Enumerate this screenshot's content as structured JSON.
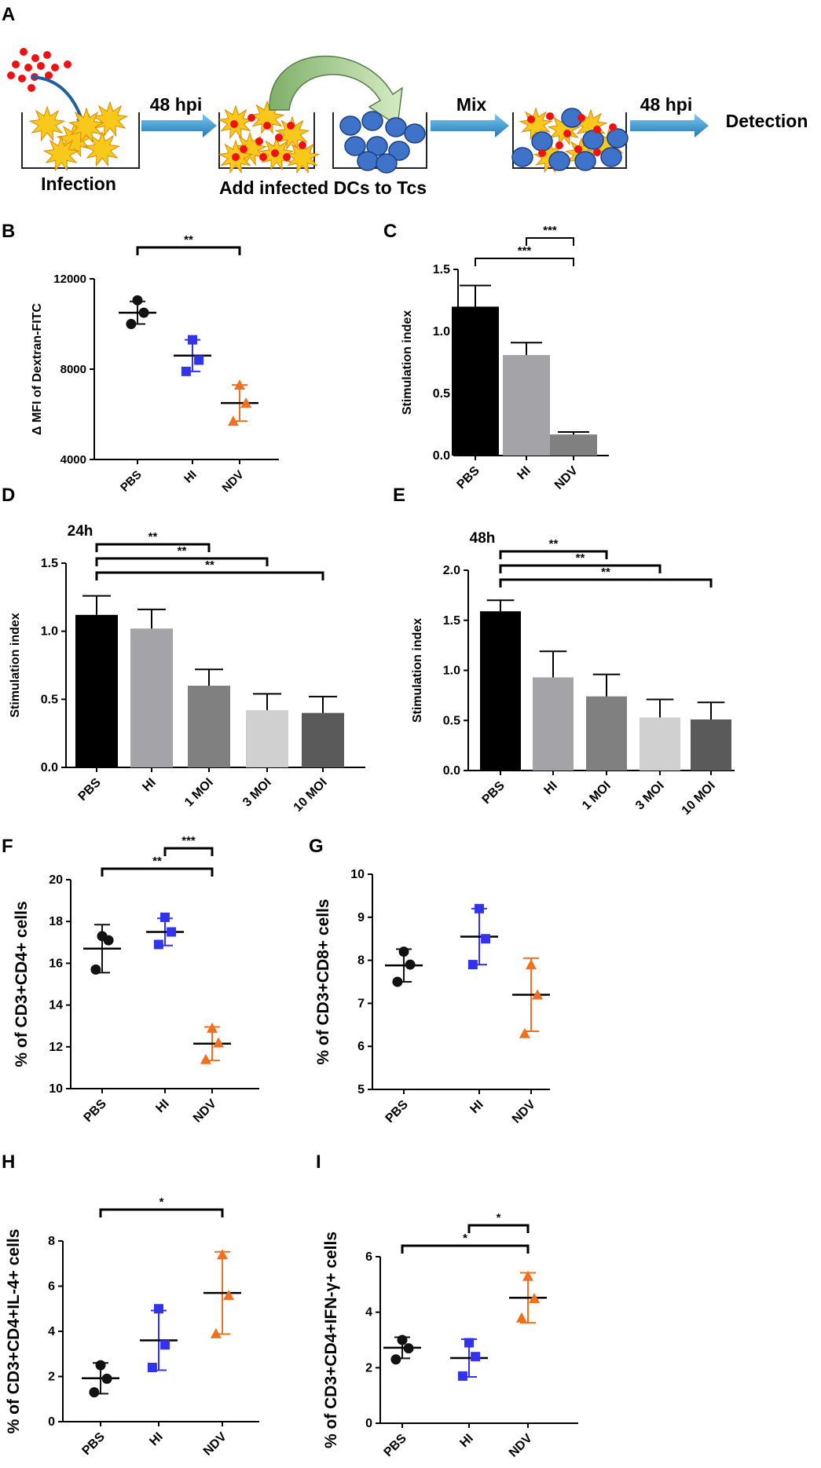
{
  "panel_labels": [
    "A",
    "B",
    "C",
    "D",
    "E",
    "F",
    "G",
    "H",
    "I"
  ],
  "schematic": {
    "step1_label": "Infection",
    "arrow1_label": "48 hpi",
    "step2_label": "Add infected DCs to Tcs",
    "arrow2_label": "Mix",
    "arrow3_label": "48 hpi",
    "final_label": "Detection"
  },
  "colors": {
    "pbs": "#111111",
    "hi": "#3333ee",
    "ndv": "#f07020",
    "dc_yellow": "#f8c91a",
    "tcell_blue": "#3f73c9",
    "virus_red": "#ee1111",
    "arrow_blue": "#3aa0dc",
    "curve_green": "#a8d08d"
  },
  "chart_data": [
    {
      "id": "B",
      "type": "scatter",
      "title": "",
      "xlabel": "",
      "ylabel": "Δ MFI of Dextran-FITC",
      "categories": [
        "PBS",
        "HI",
        "NDV"
      ],
      "ylim": [
        4000,
        12000
      ],
      "yticks": [
        "4000",
        "8000",
        "12000"
      ],
      "points": [
        [
          10000,
          10500,
          11050
        ],
        [
          7900,
          8400,
          9300
        ],
        [
          5700,
          6500,
          7300
        ]
      ],
      "mean": [
        10500,
        8600,
        6500
      ],
      "sd": [
        500,
        700,
        800
      ],
      "significance": [
        {
          "from": 0,
          "to": 2,
          "label": "**"
        }
      ]
    },
    {
      "id": "C",
      "type": "bar",
      "title": "",
      "xlabel": "",
      "ylabel": "Stimulation index",
      "categories": [
        "PBS",
        "HI",
        "NDV"
      ],
      "values": [
        1.2,
        0.81,
        0.17
      ],
      "errors": [
        0.17,
        0.1,
        0.02
      ],
      "ylim": [
        0,
        1.5
      ],
      "yticks": [
        "0.0",
        "0.5",
        "1.0",
        "1.5"
      ],
      "significance": [
        {
          "from": 0,
          "to": 2,
          "label": "***"
        },
        {
          "from": 1,
          "to": 2,
          "label": "***"
        }
      ]
    },
    {
      "id": "D",
      "type": "bar",
      "title": "24h",
      "xlabel": "",
      "ylabel": "Stimulation index",
      "categories": [
        "PBS",
        "HI",
        "1 MOI",
        "3 MOI",
        "10 MOI"
      ],
      "values": [
        1.12,
        1.02,
        0.6,
        0.42,
        0.4
      ],
      "errors": [
        0.14,
        0.14,
        0.12,
        0.12,
        0.12
      ],
      "ylim": [
        0,
        1.5
      ],
      "yticks": [
        "0.0",
        "0.5",
        "1.0",
        "1.5"
      ],
      "significance": [
        {
          "from": 0,
          "to": 2,
          "label": "**"
        },
        {
          "from": 0,
          "to": 3,
          "label": "**"
        },
        {
          "from": 0,
          "to": 4,
          "label": "**"
        }
      ]
    },
    {
      "id": "E",
      "type": "bar",
      "title": "48h",
      "xlabel": "",
      "ylabel": "Stimulation index",
      "categories": [
        "PBS",
        "HI",
        "1 MOI",
        "3 MOI",
        "10 MOI"
      ],
      "values": [
        1.59,
        0.93,
        0.74,
        0.53,
        0.51
      ],
      "errors": [
        0.11,
        0.26,
        0.22,
        0.18,
        0.17
      ],
      "ylim": [
        0,
        2.0
      ],
      "yticks": [
        "0.0",
        "0.5",
        "1.0",
        "1.5",
        "2.0"
      ],
      "significance": [
        {
          "from": 0,
          "to": 2,
          "label": "**"
        },
        {
          "from": 0,
          "to": 3,
          "label": "**"
        },
        {
          "from": 0,
          "to": 4,
          "label": "**"
        }
      ]
    },
    {
      "id": "F",
      "type": "scatter",
      "title": "",
      "xlabel": "",
      "ylabel": "% of CD3+CD4+ cells",
      "categories": [
        "PBS",
        "HI",
        "NDV"
      ],
      "points": [
        [
          15.7,
          17.1,
          17.3
        ],
        [
          16.9,
          17.5,
          18.2
        ],
        [
          11.4,
          12.2,
          12.9
        ]
      ],
      "mean": [
        16.7,
        17.5,
        12.15
      ],
      "sd": [
        1.15,
        0.65,
        0.8
      ],
      "ylim": [
        10,
        20
      ],
      "yticks": [
        "10",
        "12",
        "14",
        "16",
        "18",
        "20"
      ],
      "significance": [
        {
          "from": 0,
          "to": 2,
          "label": "**"
        },
        {
          "from": 1,
          "to": 2,
          "label": "***"
        }
      ]
    },
    {
      "id": "G",
      "type": "scatter",
      "title": "",
      "xlabel": "",
      "ylabel": "% of CD3+CD8+ cells",
      "categories": [
        "PBS",
        "HI",
        "NDV"
      ],
      "points": [
        [
          7.5,
          7.9,
          8.2
        ],
        [
          7.9,
          8.5,
          9.2
        ],
        [
          6.3,
          7.2,
          7.9
        ]
      ],
      "mean": [
        7.88,
        8.55,
        7.2
      ],
      "sd": [
        0.38,
        0.65,
        0.85
      ],
      "ylim": [
        5,
        10
      ],
      "yticks": [
        "5",
        "6",
        "7",
        "8",
        "9",
        "10"
      ],
      "significance": []
    },
    {
      "id": "H",
      "type": "scatter",
      "title": "",
      "xlabel": "",
      "ylabel": "% of CD3+CD4+IL-4+ cells",
      "categories": [
        "PBS",
        "HI",
        "NDV"
      ],
      "points": [
        [
          1.3,
          1.9,
          2.5
        ],
        [
          2.4,
          3.4,
          5.0
        ],
        [
          3.9,
          5.6,
          7.4
        ]
      ],
      "mean": [
        1.92,
        3.6,
        5.7
      ],
      "sd": [
        0.68,
        1.32,
        1.82
      ],
      "ylim": [
        0,
        8
      ],
      "yticks": [
        "0",
        "2",
        "4",
        "6",
        "8"
      ],
      "significance": [
        {
          "from": 0,
          "to": 2,
          "label": "*"
        }
      ]
    },
    {
      "id": "I",
      "type": "scatter",
      "title": "",
      "xlabel": "",
      "ylabel": "% of CD3+CD4+IFN-γ+ cells",
      "categories": [
        "PBS",
        "HI",
        "NDV"
      ],
      "points": [
        [
          2.3,
          2.7,
          3.0
        ],
        [
          1.7,
          2.4,
          2.9
        ],
        [
          3.8,
          4.5,
          5.3
        ]
      ],
      "mean": [
        2.72,
        2.35,
        4.52
      ],
      "sd": [
        0.38,
        0.68,
        0.9
      ],
      "ylim": [
        0,
        6
      ],
      "yticks": [
        "0",
        "2",
        "4",
        "6"
      ],
      "significance": [
        {
          "from": 0,
          "to": 2,
          "label": "*"
        },
        {
          "from": 1,
          "to": 2,
          "label": "*"
        }
      ]
    }
  ]
}
